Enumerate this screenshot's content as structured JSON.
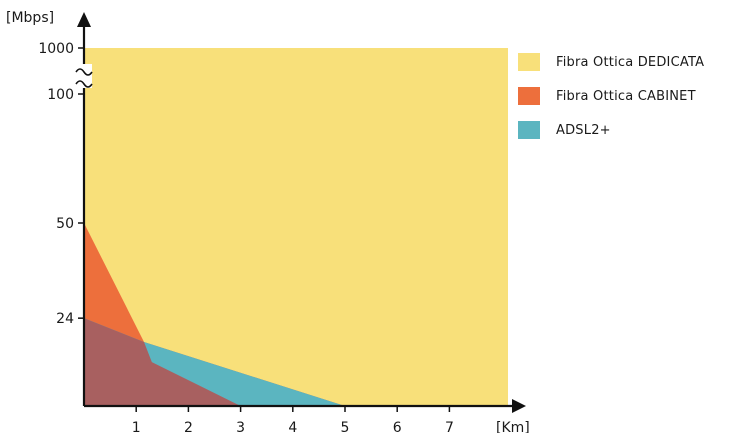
{
  "chart_data": {
    "type": "area",
    "title": "",
    "xlabel": "[Km]",
    "ylabel": "[Mbps]",
    "x_ticks": [
      1,
      2,
      3,
      4,
      5,
      6,
      7
    ],
    "y_ticks": [
      "24",
      "50",
      "100",
      "1000"
    ],
    "xlim": [
      0,
      7.8
    ],
    "y_axis_break": true,
    "series": [
      {
        "name": "Fibra Ottica DEDICATA",
        "color": "#f8e07a",
        "points": [
          [
            0,
            1000
          ],
          [
            7.8,
            1000
          ]
        ]
      },
      {
        "name": "Fibra Ottica CABINET",
        "color": "#ed6f3c",
        "points": [
          [
            0,
            50
          ],
          [
            1.15,
            17.5
          ],
          [
            5,
            0
          ]
        ]
      },
      {
        "name": "ADSL2+",
        "color": "#5bb5c0",
        "points": [
          [
            0,
            24
          ],
          [
            1.15,
            17.5
          ],
          [
            5,
            0
          ]
        ]
      }
    ],
    "overlaps": [
      {
        "between": [
          "Fibra Ottica CABINET",
          "ADSL2+"
        ],
        "color": "#a86060",
        "points": [
          [
            0,
            24
          ],
          [
            1.15,
            17.5
          ],
          [
            1.3,
            12
          ],
          [
            3,
            0
          ]
        ]
      }
    ],
    "legend_position": "right"
  }
}
